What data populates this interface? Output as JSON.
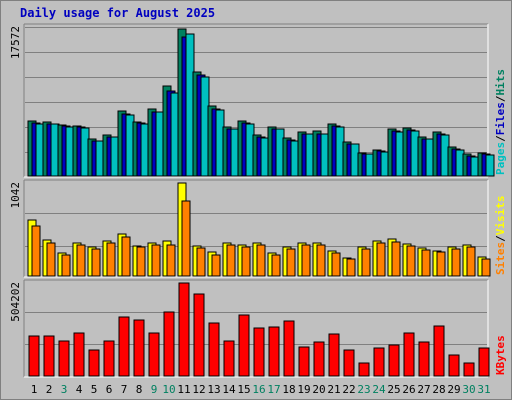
{
  "title": "Daily usage for August 2025",
  "chart_data": [
    {
      "type": "bar",
      "panel": "hits-files-pages",
      "max_label": "17572",
      "ylim": [
        0,
        17572
      ],
      "categories": [
        "1",
        "2",
        "3",
        "4",
        "5",
        "6",
        "7",
        "8",
        "9",
        "10",
        "11",
        "12",
        "13",
        "14",
        "15",
        "16",
        "17",
        "18",
        "19",
        "20",
        "21",
        "22",
        "23",
        "24",
        "25",
        "26",
        "27",
        "28",
        "29",
        "30",
        "31"
      ],
      "right_label": {
        "parts": [
          "Pages",
          "/",
          "Files",
          "/",
          "Hits"
        ],
        "colors": [
          "#00c0c0",
          "#000000",
          "#0000c0",
          "#000000",
          "#008060"
        ]
      },
      "series": [
        {
          "name": "Hits",
          "color": "#008060",
          "values": [
            6460,
            6320,
            6020,
            5930,
            4370,
            4850,
            7640,
            6350,
            7850,
            10560,
            17350,
            12240,
            8300,
            5720,
            6470,
            4780,
            5810,
            4460,
            5230,
            5250,
            6090,
            4060,
            2770,
            3100,
            5500,
            5620,
            4640,
            5140,
            3420,
            2570,
            2720
          ]
        },
        {
          "name": "Files",
          "color": "#0000c0",
          "values": [
            6200,
            6150,
            5850,
            5750,
            4150,
            4650,
            7300,
            6200,
            7600,
            10000,
            16350,
            11900,
            7950,
            5600,
            6300,
            4550,
            5600,
            4300,
            5000,
            5000,
            5850,
            3800,
            2600,
            2900,
            5250,
            5450,
            4400,
            4950,
            3150,
            2350,
            2550
          ]
        },
        {
          "name": "Pages",
          "color": "#00c0c0",
          "values": [
            6100,
            6080,
            5800,
            5700,
            4080,
            4580,
            7220,
            6100,
            7550,
            9820,
            16800,
            11620,
            7800,
            5500,
            6150,
            4480,
            5550,
            4180,
            4960,
            4920,
            5730,
            3760,
            2550,
            2850,
            5180,
            5320,
            4360,
            4840,
            3080,
            2250,
            2500
          ]
        }
      ]
    },
    {
      "type": "bar",
      "panel": "visits-sites",
      "max_label": "1042",
      "ylim": [
        0,
        1042
      ],
      "categories": [
        "1",
        "2",
        "3",
        "4",
        "5",
        "6",
        "7",
        "8",
        "9",
        "10",
        "11",
        "12",
        "13",
        "14",
        "15",
        "16",
        "17",
        "18",
        "19",
        "20",
        "21",
        "22",
        "23",
        "24",
        "25",
        "26",
        "27",
        "28",
        "29",
        "30",
        "31"
      ],
      "right_label": {
        "parts": [
          "Sites",
          "/",
          "Visits"
        ],
        "colors": [
          "#ff8000",
          "#000000",
          "#ffff00"
        ]
      },
      "series": [
        {
          "name": "Visits",
          "color": "#ffff00",
          "values": [
            625,
            400,
            255,
            365,
            325,
            390,
            465,
            340,
            370,
            390,
            1042,
            340,
            265,
            370,
            350,
            365,
            255,
            320,
            375,
            375,
            275,
            205,
            330,
            395,
            410,
            360,
            310,
            285,
            330,
            350,
            210
          ]
        },
        {
          "name": "Sites",
          "color": "#ff8000",
          "values": [
            555,
            375,
            240,
            345,
            305,
            365,
            440,
            320,
            345,
            345,
            845,
            310,
            240,
            345,
            330,
            345,
            240,
            300,
            350,
            350,
            255,
            195,
            305,
            370,
            385,
            335,
            290,
            265,
            305,
            325,
            195
          ]
        }
      ]
    },
    {
      "type": "bar",
      "panel": "kbytes",
      "max_label": "504202",
      "ylim": [
        0,
        504202
      ],
      "categories": [
        "1",
        "2",
        "3",
        "4",
        "5",
        "6",
        "7",
        "8",
        "9",
        "10",
        "11",
        "12",
        "13",
        "14",
        "15",
        "16",
        "17",
        "18",
        "19",
        "20",
        "21",
        "22",
        "23",
        "24",
        "25",
        "26",
        "27",
        "28",
        "29",
        "30",
        "31"
      ],
      "right_label": {
        "parts": [
          "KBytes"
        ],
        "colors": [
          "#ff0000"
        ]
      },
      "series": [
        {
          "name": "KBytes",
          "color": "#ff0000",
          "values": [
            218000,
            215000,
            191000,
            231000,
            143000,
            191000,
            320000,
            302000,
            234000,
            347000,
            504202,
            445000,
            286000,
            191000,
            331000,
            262000,
            267000,
            298000,
            156000,
            183000,
            229000,
            143000,
            71000,
            152000,
            166000,
            234000,
            183000,
            273000,
            116000,
            71000,
            152000
          ]
        }
      ]
    }
  ],
  "x_tick_colors": [
    "#000000",
    "#000000",
    "#008060",
    "#000000",
    "#000000",
    "#000000",
    "#000000",
    "#000000",
    "#008060",
    "#008060",
    "#000000",
    "#000000",
    "#000000",
    "#000000",
    "#000000",
    "#008060",
    "#008060",
    "#000000",
    "#000000",
    "#000000",
    "#000000",
    "#000000",
    "#008060",
    "#008060",
    "#000000",
    "#000000",
    "#000000",
    "#000000",
    "#000000",
    "#008060",
    "#008060"
  ]
}
